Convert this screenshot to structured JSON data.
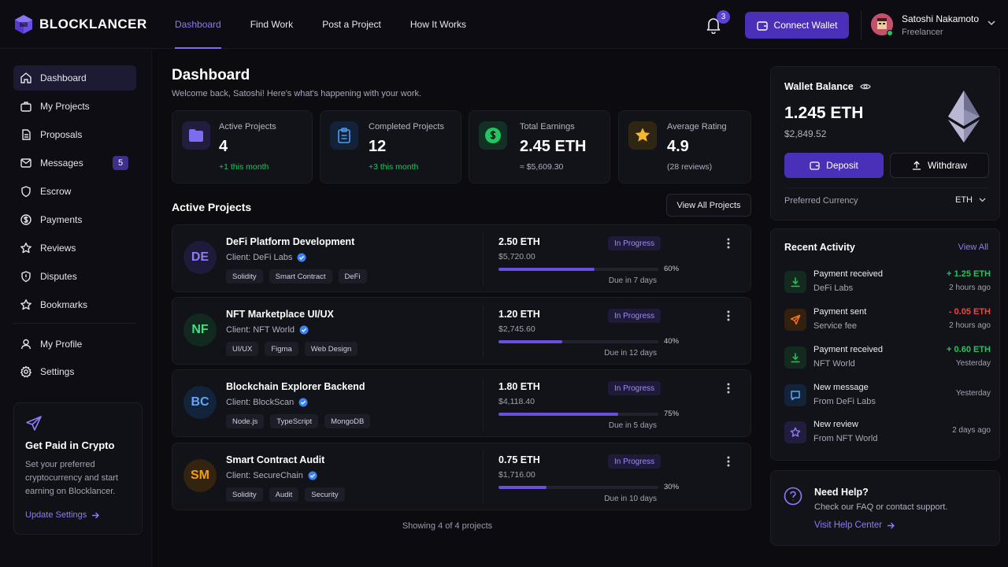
{
  "app": {
    "name": "BLOCKLANCER",
    "brand_color": "#6a4ee0"
  },
  "nav": [
    {
      "label": "Dashboard",
      "active": true
    },
    {
      "label": "Find Work"
    },
    {
      "label": "Post a Project"
    },
    {
      "label": "How It Works"
    }
  ],
  "header": {
    "notification_count": "3",
    "connect_wallet_label": "Connect Wallet",
    "user_name": "Satoshi Nakamoto",
    "user_role": "Freelancer"
  },
  "sidebar": {
    "items": [
      {
        "label": "Dashboard",
        "icon": "home-icon",
        "active": true
      },
      {
        "label": "My Projects",
        "icon": "briefcase-icon"
      },
      {
        "label": "Proposals",
        "icon": "document-icon"
      },
      {
        "label": "Messages",
        "icon": "message-icon",
        "badge": "5"
      },
      {
        "label": "Escrow",
        "icon": "shield-icon"
      },
      {
        "label": "Payments",
        "icon": "dollar-icon"
      },
      {
        "label": "Reviews",
        "icon": "star-icon"
      },
      {
        "label": "Disputes",
        "icon": "shield-alert-icon"
      },
      {
        "label": "Bookmarks",
        "icon": "bookmark-star-icon"
      },
      {
        "label": "My Profile",
        "icon": "user-icon"
      },
      {
        "label": "Settings",
        "icon": "gear-icon"
      }
    ],
    "promo": {
      "title": "Get Paid in Crypto",
      "text": "Set your preferred cryptocurrency and start earning on Blocklancer.",
      "link": "Update Settings"
    }
  },
  "page": {
    "title": "Dashboard",
    "subtitle": "Welcome back, Satoshi! Here's what's happening with your work."
  },
  "stats": [
    {
      "label": "Active Projects",
      "value": "4",
      "note": "+1 this month",
      "icon": "folder-icon"
    },
    {
      "label": "Completed Projects",
      "value": "12",
      "note": "+3 this month",
      "icon": "clipboard-icon"
    },
    {
      "label": "Total Earnings",
      "value": "2.45 ETH",
      "note": "≈ $5,609.30",
      "icon": "dollar-icon"
    },
    {
      "label": "Average Rating",
      "value": "4.9",
      "note": "(28 reviews)",
      "icon": "star-icon"
    }
  ],
  "active_projects": {
    "title": "Active Projects",
    "view_all_label": "View All Projects",
    "footer": "Showing 4 of 4 projects",
    "items": [
      {
        "initials": "DE",
        "title": "DeFi Platform Development",
        "client": "Client: DeFi Labs",
        "tags": [
          "Solidity",
          "Smart Contract",
          "DeFi"
        ],
        "amount": "2.50 ETH",
        "usd": "$5,720.00",
        "status": "In Progress",
        "progress_pct": 60,
        "progress_label": "60%",
        "due": "Due in 7 days"
      },
      {
        "initials": "NF",
        "title": "NFT Marketplace UI/UX",
        "client": "Client: NFT World",
        "tags": [
          "UI/UX",
          "Figma",
          "Web Design"
        ],
        "amount": "1.20 ETH",
        "usd": "$2,745.60",
        "status": "In Progress",
        "progress_pct": 40,
        "progress_label": "40%",
        "due": "Due in 12 days"
      },
      {
        "initials": "BC",
        "title": "Blockchain Explorer Backend",
        "client": "Client: BlockScan",
        "tags": [
          "Node.js",
          "TypeScript",
          "MongoDB"
        ],
        "amount": "1.80 ETH",
        "usd": "$4,118.40",
        "status": "In Progress",
        "progress_pct": 75,
        "progress_label": "75%",
        "due": "Due in 5 days"
      },
      {
        "initials": "SM",
        "title": "Smart Contract Audit",
        "client": "Client: SecureChain",
        "tags": [
          "Solidity",
          "Audit",
          "Security"
        ],
        "amount": "0.75 ETH",
        "usd": "$1,716.00",
        "status": "In Progress",
        "progress_pct": 30,
        "progress_label": "30%",
        "due": "Due in 10 days"
      }
    ]
  },
  "wallet": {
    "title": "Wallet Balance",
    "eth": "1.245 ETH",
    "usd": "$2,849.52",
    "deposit_label": "Deposit",
    "withdraw_label": "Withdraw",
    "pref_label": "Preferred Currency",
    "pref_value": "ETH"
  },
  "activity": {
    "title": "Recent Activity",
    "view_all": "View All",
    "items": [
      {
        "line1": "Payment received",
        "line2": "DeFi Labs",
        "amount": "+ 1.25 ETH",
        "time": "2 hours ago",
        "icon": "download-icon",
        "amount_color": "#22c55e"
      },
      {
        "line1": "Payment sent",
        "line2": "Service fee",
        "amount": "- 0.05 ETH",
        "time": "2 hours ago",
        "icon": "send-icon",
        "amount_color": "#ef4444"
      },
      {
        "line1": "Payment received",
        "line2": "NFT World",
        "amount": "+ 0.60 ETH",
        "time": "Yesterday",
        "icon": "download-icon",
        "amount_color": "#22c55e"
      },
      {
        "line1": "New message",
        "line2": "From DeFi Labs",
        "amount": "",
        "time": "Yesterday",
        "icon": "chat-icon"
      },
      {
        "line1": "New review",
        "line2": "From NFT World",
        "amount": "",
        "time": "2 days ago",
        "icon": "star-icon"
      }
    ]
  },
  "help": {
    "title": "Need Help?",
    "subtitle": "Check our FAQ or contact support.",
    "link": "Visit Help Center"
  }
}
